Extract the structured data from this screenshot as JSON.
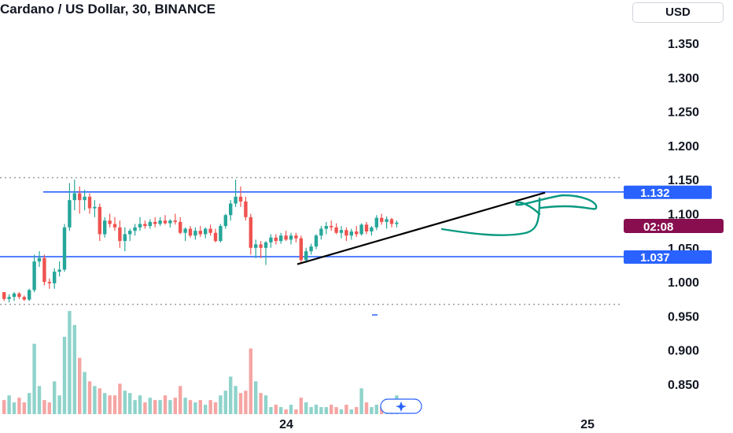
{
  "header": {
    "title": "Cardano / US Dollar, 30, BINANCE",
    "currency_button": "USD"
  },
  "colors": {
    "up": "#26a69a",
    "down": "#ef5350",
    "volume_up": "#8fd3cb",
    "volume_down": "#f5a5a3",
    "level_line": "#2962ff",
    "price_badge": "#2962ff",
    "countdown_badge": "#880e4f",
    "trendline": "#000000",
    "drawing": "#089981",
    "dotted_line": "#9e9e9e"
  },
  "badges": {
    "resistance": "1.132",
    "countdown": "02:08",
    "support": "1.037"
  },
  "chart_data": {
    "type": "candlestick",
    "title": "Cardano / US Dollar, 30, BINANCE",
    "y_ticks": [
      "1.350",
      "1.300",
      "1.250",
      "1.200",
      "1.150",
      "1.100",
      "1.050",
      "1.000",
      "0.950",
      "0.900",
      "0.850"
    ],
    "x_ticks": [
      "24",
      "25"
    ],
    "ylim": [
      0.82,
      1.39
    ],
    "levels": {
      "resistance": 1.132,
      "support": 1.037,
      "dotted_top": 1.153,
      "dotted_bottom": 0.967
    },
    "trendline": {
      "from": 1.026,
      "to": 1.131
    },
    "candles": [
      [
        0.985,
        0.985,
        0.972,
        0.975
      ],
      [
        0.975,
        0.982,
        0.97,
        0.978
      ],
      [
        0.978,
        0.985,
        0.972,
        0.983
      ],
      [
        0.983,
        0.985,
        0.975,
        0.978
      ],
      [
        0.978,
        0.98,
        0.972,
        0.974
      ],
      [
        0.974,
        0.99,
        0.972,
        0.988
      ],
      [
        0.988,
        1.04,
        0.985,
        1.03
      ],
      [
        1.03,
        1.045,
        1.022,
        1.035
      ],
      [
        1.035,
        1.04,
        0.995,
        1.0
      ],
      [
        1.0,
        1.005,
        0.99,
        0.998
      ],
      [
        0.998,
        1.02,
        0.99,
        1.015
      ],
      [
        1.015,
        1.03,
        1.008,
        1.018
      ],
      [
        1.018,
        1.085,
        1.015,
        1.08
      ],
      [
        1.08,
        1.145,
        1.075,
        1.12
      ],
      [
        1.12,
        1.15,
        1.105,
        1.13
      ],
      [
        1.13,
        1.14,
        1.1,
        1.12
      ],
      [
        1.12,
        1.135,
        1.105,
        1.125
      ],
      [
        1.125,
        1.13,
        1.1,
        1.108
      ],
      [
        1.108,
        1.12,
        1.095,
        1.11
      ],
      [
        1.11,
        1.115,
        1.06,
        1.07
      ],
      [
        1.07,
        1.095,
        1.065,
        1.09
      ],
      [
        1.09,
        1.1,
        1.08,
        1.085
      ],
      [
        1.085,
        1.095,
        1.075,
        1.08
      ],
      [
        1.08,
        1.09,
        1.05,
        1.06
      ],
      [
        1.06,
        1.08,
        1.045,
        1.07
      ],
      [
        1.07,
        1.078,
        1.06,
        1.075
      ],
      [
        1.075,
        1.085,
        1.068,
        1.08
      ],
      [
        1.08,
        1.095,
        1.075,
        1.085
      ],
      [
        1.085,
        1.09,
        1.078,
        1.082
      ],
      [
        1.082,
        1.092,
        1.078,
        1.088
      ],
      [
        1.088,
        1.095,
        1.08,
        1.085
      ],
      [
        1.085,
        1.095,
        1.082,
        1.09
      ],
      [
        1.09,
        1.098,
        1.084,
        1.086
      ],
      [
        1.086,
        1.092,
        1.08,
        1.09
      ],
      [
        1.09,
        1.1,
        1.084,
        1.088
      ],
      [
        1.088,
        1.095,
        1.07,
        1.072
      ],
      [
        1.072,
        1.08,
        1.06,
        1.078
      ],
      [
        1.078,
        1.082,
        1.065,
        1.068
      ],
      [
        1.068,
        1.08,
        1.062,
        1.075
      ],
      [
        1.075,
        1.082,
        1.066,
        1.07
      ],
      [
        1.07,
        1.08,
        1.064,
        1.078
      ],
      [
        1.078,
        1.084,
        1.068,
        1.072
      ],
      [
        1.072,
        1.078,
        1.058,
        1.06
      ],
      [
        1.06,
        1.085,
        1.058,
        1.082
      ],
      [
        1.082,
        1.1,
        1.078,
        1.098
      ],
      [
        1.098,
        1.12,
        1.09,
        1.115
      ],
      [
        1.115,
        1.15,
        1.11,
        1.125
      ],
      [
        1.125,
        1.14,
        1.11,
        1.118
      ],
      [
        1.118,
        1.125,
        1.09,
        1.095
      ],
      [
        1.095,
        1.1,
        1.04,
        1.05
      ],
      [
        1.05,
        1.062,
        1.035,
        1.055
      ],
      [
        1.055,
        1.06,
        1.035,
        1.05
      ],
      [
        1.05,
        1.06,
        1.025,
        1.058
      ],
      [
        1.058,
        1.07,
        1.05,
        1.065
      ],
      [
        1.065,
        1.07,
        1.055,
        1.06
      ],
      [
        1.06,
        1.072,
        1.056,
        1.068
      ],
      [
        1.068,
        1.075,
        1.06,
        1.062
      ],
      [
        1.062,
        1.072,
        1.055,
        1.068
      ],
      [
        1.068,
        1.072,
        1.058,
        1.064
      ],
      [
        1.064,
        1.068,
        1.028,
        1.032
      ],
      [
        1.032,
        1.05,
        1.028,
        1.045
      ],
      [
        1.045,
        1.056,
        1.04,
        1.052
      ],
      [
        1.052,
        1.07,
        1.048,
        1.068
      ],
      [
        1.068,
        1.082,
        1.062,
        1.078
      ],
      [
        1.078,
        1.088,
        1.07,
        1.082
      ],
      [
        1.082,
        1.09,
        1.075,
        1.08
      ],
      [
        1.08,
        1.086,
        1.07,
        1.072
      ],
      [
        1.072,
        1.082,
        1.064,
        1.076
      ],
      [
        1.076,
        1.08,
        1.06,
        1.068
      ],
      [
        1.068,
        1.078,
        1.062,
        1.074
      ],
      [
        1.074,
        1.082,
        1.066,
        1.07
      ],
      [
        1.07,
        1.086,
        1.068,
        1.084
      ],
      [
        1.084,
        1.088,
        1.07,
        1.074
      ],
      [
        1.074,
        1.082,
        1.068,
        1.08
      ],
      [
        1.08,
        1.098,
        1.076,
        1.094
      ],
      [
        1.094,
        1.1,
        1.084,
        1.088
      ],
      [
        1.088,
        1.096,
        1.078,
        1.092
      ],
      [
        1.092,
        1.094,
        1.08,
        1.085
      ],
      [
        1.085,
        1.09,
        1.08,
        1.087
      ]
    ],
    "volumes": [
      6,
      8,
      5,
      7,
      5,
      9,
      30,
      12,
      6,
      5,
      14,
      8,
      33,
      44,
      38,
      24,
      18,
      14,
      12,
      11,
      9,
      8,
      8,
      13,
      10,
      9,
      6,
      8,
      5,
      7,
      6,
      6,
      8,
      6,
      7,
      12,
      7,
      6,
      5,
      6,
      4,
      6,
      5,
      8,
      10,
      16,
      12,
      9,
      10,
      28,
      14,
      9,
      8,
      3,
      4,
      3,
      2,
      4,
      2,
      7,
      5,
      3,
      4,
      3,
      3,
      4,
      3,
      2,
      4,
      2,
      3,
      11,
      5,
      3,
      4,
      3,
      3,
      2,
      8
    ]
  }
}
